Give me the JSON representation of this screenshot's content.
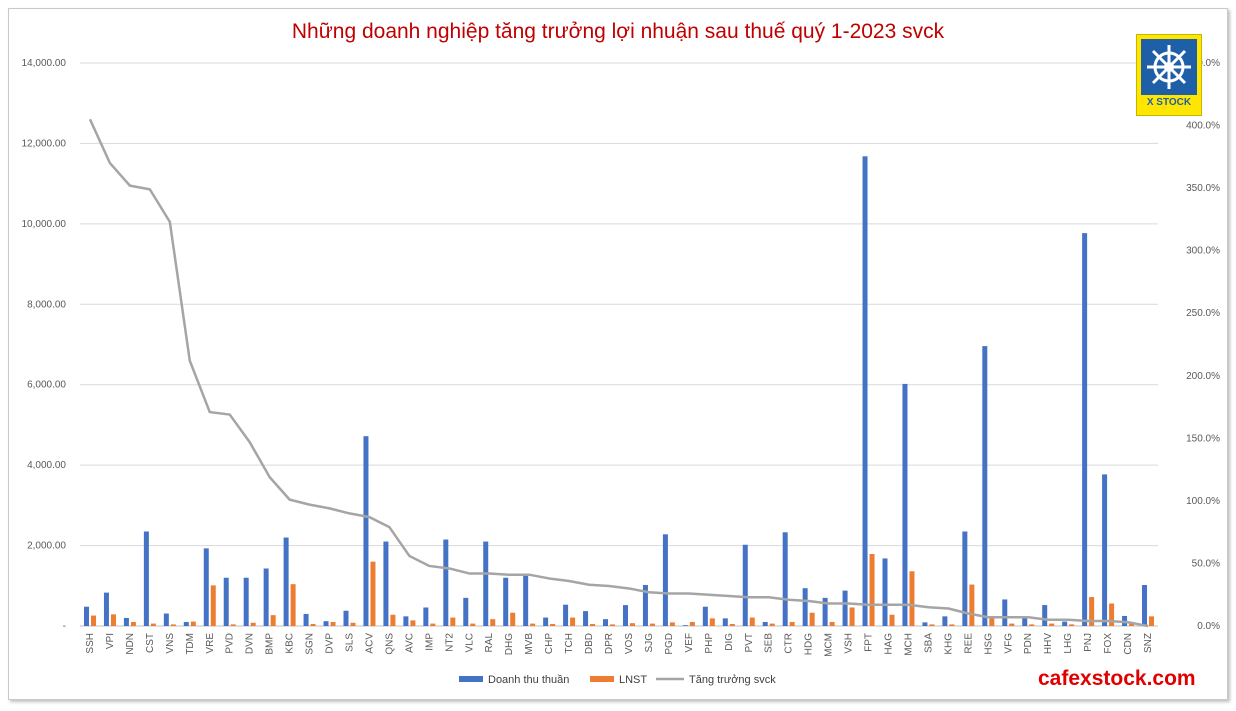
{
  "chart_data": {
    "type": "bar",
    "title": "Những doanh nghiệp tăng trưởng lợi nhuận sau thuế quý 1-2023 svck",
    "categories": [
      "SSH",
      "VPI",
      "NDN",
      "CST",
      "VNS",
      "TDM",
      "VRE",
      "PVD",
      "DVN",
      "BMP",
      "KBC",
      "SGN",
      "DVP",
      "SLS",
      "ACV",
      "QNS",
      "AVC",
      "IMP",
      "NT2",
      "VLC",
      "RAL",
      "DHG",
      "MVB",
      "CHP",
      "TCH",
      "DBD",
      "DPR",
      "VOS",
      "SJG",
      "PGD",
      "VEF",
      "PHP",
      "DIG",
      "PVT",
      "SEB",
      "CTR",
      "HDG",
      "MCM",
      "VSH",
      "FPT",
      "HAG",
      "MCH",
      "SBA",
      "KHG",
      "REE",
      "HSG",
      "VFG",
      "PDN",
      "HHV",
      "LHG",
      "PNJ",
      "FOX",
      "CDN",
      "SNZ"
    ],
    "series": [
      {
        "name": "Doanh thu thuần",
        "color": "#4472c4",
        "axis": "left",
        "values": [
          480,
          830,
          200,
          2350,
          310,
          100,
          1930,
          1200,
          1200,
          1430,
          2200,
          300,
          120,
          380,
          4720,
          2100,
          240,
          460,
          2150,
          700,
          2100,
          1200,
          1280,
          210,
          530,
          370,
          170,
          520,
          1020,
          2280,
          20,
          480,
          190,
          2020,
          100,
          2330,
          940,
          700,
          880,
          11680,
          1680,
          6020,
          90,
          240,
          2350,
          6960,
          660,
          190,
          520,
          110,
          9770,
          3770,
          250,
          1020
        ]
      },
      {
        "name": "LNST",
        "color": "#ed7d31",
        "axis": "left",
        "values": [
          260,
          290,
          100,
          60,
          40,
          110,
          1010,
          40,
          80,
          270,
          1040,
          50,
          100,
          80,
          1600,
          280,
          140,
          60,
          210,
          60,
          170,
          330,
          60,
          50,
          210,
          50,
          40,
          70,
          60,
          90,
          100,
          190,
          50,
          210,
          60,
          100,
          330,
          100,
          460,
          1790,
          280,
          1360,
          40,
          40,
          1030,
          220,
          60,
          40,
          60,
          40,
          720,
          560,
          70,
          240
        ]
      },
      {
        "name": "Tăng trưởng svck",
        "color": "#a5a5a5",
        "axis": "right",
        "line": true,
        "values": [
          4.05,
          3.7,
          3.52,
          3.49,
          3.23,
          2.12,
          1.71,
          1.69,
          1.47,
          1.19,
          1.01,
          0.97,
          0.94,
          0.9,
          0.87,
          0.79,
          0.56,
          0.48,
          0.46,
          0.42,
          0.42,
          0.41,
          0.41,
          0.38,
          0.36,
          0.33,
          0.32,
          0.3,
          0.27,
          0.26,
          0.26,
          0.25,
          0.24,
          0.23,
          0.23,
          0.21,
          0.2,
          0.18,
          0.18,
          0.17,
          0.17,
          0.17,
          0.15,
          0.14,
          0.1,
          0.07,
          0.07,
          0.07,
          0.05,
          0.05,
          0.04,
          0.04,
          0.03,
          0.0
        ]
      }
    ],
    "y_left": {
      "min": 0,
      "max": 14000,
      "ticks": [
        "-",
        "2,000.00",
        "4,000.00",
        "6,000.00",
        "8,000.00",
        "10,000.00",
        "12,000.00",
        "14,000.00"
      ]
    },
    "y_right": {
      "min": 0,
      "max": 4.5,
      "ticks": [
        "0.0%",
        "50.0%",
        "100.0%",
        "150.0%",
        "200.0%",
        "250.0%",
        "300.0%",
        "350.0%",
        "400.0%",
        "450.0%"
      ]
    },
    "legend_position": "bottom",
    "grid": true
  },
  "logo": {
    "text": "X STOCK"
  },
  "watermark": "cafexstock.com"
}
